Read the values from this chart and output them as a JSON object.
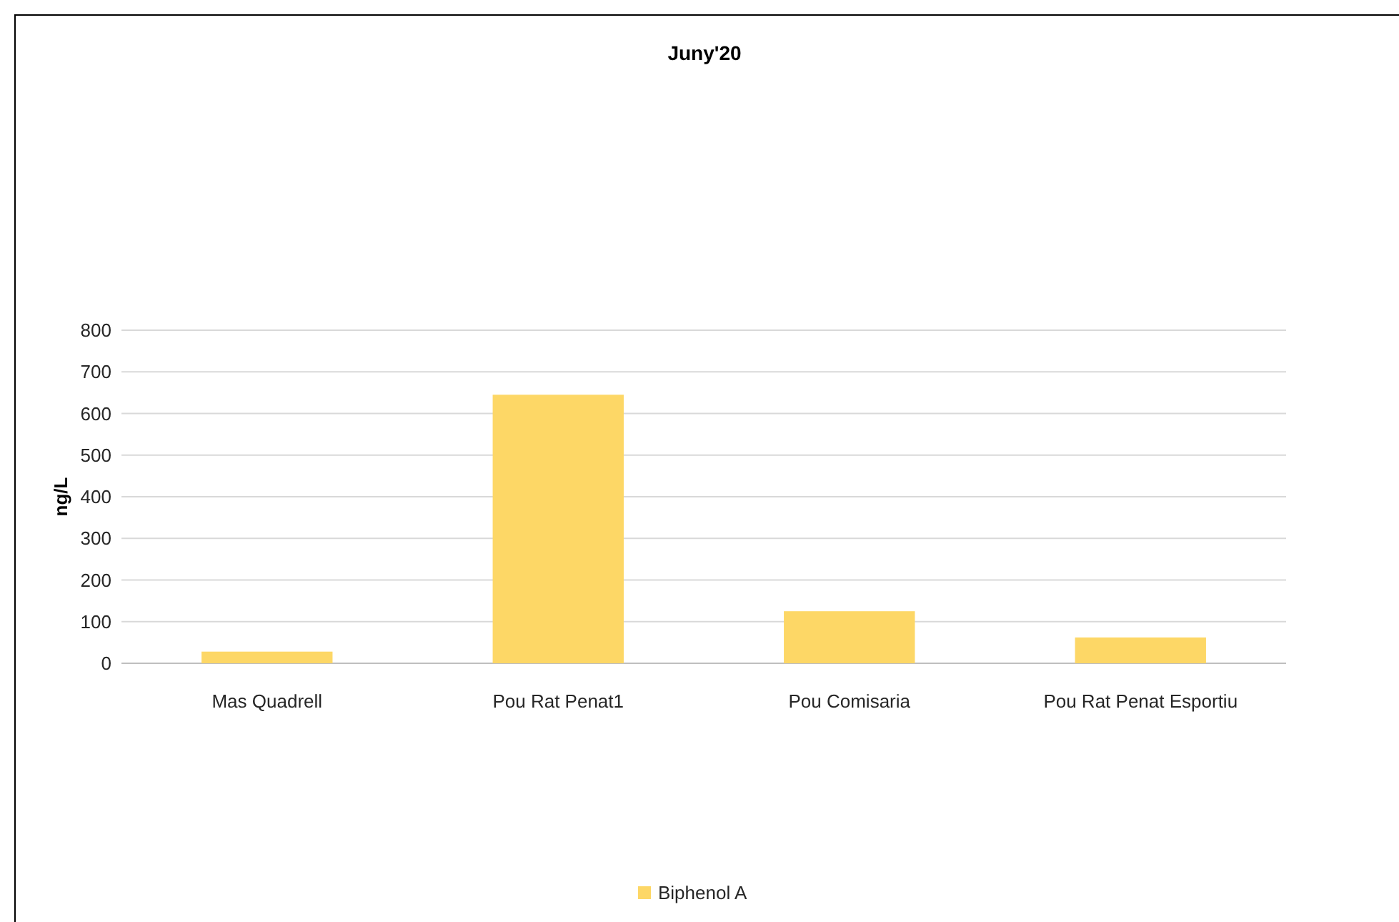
{
  "chart_data": {
    "type": "bar",
    "title": "Juny'20",
    "ylabel": "ng/L",
    "categories": [
      "Mas Quadrell",
      "Pou Rat Penat1",
      "Pou Comisaria",
      "Pou Rat Penat Esportiu"
    ],
    "series": [
      {
        "name": "Biphenol A",
        "color": "#fdd766",
        "values": [
          28,
          645,
          125,
          62
        ]
      }
    ],
    "ylim": [
      0,
      800
    ],
    "yticks": [
      0,
      100,
      200,
      300,
      400,
      500,
      600,
      700,
      800
    ],
    "grid": "y",
    "legend": "bottom"
  }
}
